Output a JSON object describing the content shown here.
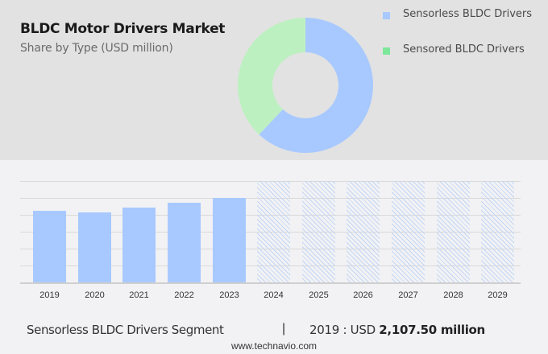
{
  "header": {
    "title": "BLDC Motor Drivers Market",
    "subtitle": "Share by Type (USD million)"
  },
  "legend": [
    {
      "label": "Sensorless BLDC Drivers",
      "color": "#a8c9ff"
    },
    {
      "label": "Sensored BLDC Drivers",
      "color": "#7de89a"
    }
  ],
  "footer": {
    "segment": "Sensorless BLDC Drivers Segment",
    "divider": "|",
    "value_prefix": "2019 : USD ",
    "value_bold": "2,107.50 million",
    "site": "www.technavio.com"
  },
  "chart_data": [
    {
      "type": "pie",
      "title": "BLDC Motor Drivers Market",
      "subtitle": "Share by Type (USD million)",
      "donut": true,
      "labels": [
        "Sensorless BLDC Drivers",
        "Sensored BLDC Drivers"
      ],
      "values": [
        62,
        38
      ],
      "colors": [
        "#a8c9ff",
        "#bdf0c0"
      ],
      "legend_position": "right"
    },
    {
      "type": "bar",
      "title": "Sensorless BLDC Drivers Segment",
      "categories": [
        "2019",
        "2020",
        "2021",
        "2022",
        "2023",
        "2024",
        "2025",
        "2026",
        "2027",
        "2028",
        "2029"
      ],
      "values": [
        2107.5,
        2060,
        2200,
        2345,
        2485,
        null,
        null,
        null,
        null,
        null,
        null
      ],
      "forecast_categories": [
        "2024",
        "2025",
        "2026",
        "2027",
        "2028",
        "2029"
      ],
      "ylim": [
        0,
        3000
      ],
      "grid": true,
      "xlabel": "",
      "ylabel": "",
      "annotation": "2019 : USD 2,107.50 million"
    }
  ]
}
